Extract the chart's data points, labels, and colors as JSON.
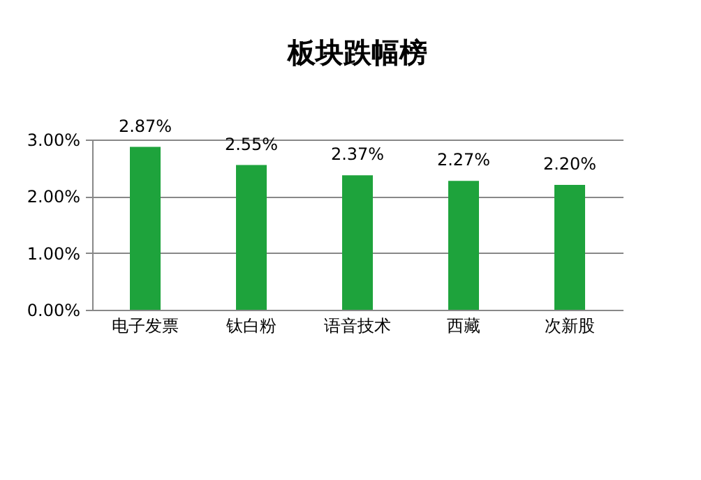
{
  "chart_data": {
    "type": "bar",
    "title": "板块跌幅榜",
    "categories": [
      "电子发票",
      "钛白粉",
      "语音技术",
      "西藏",
      "次新股"
    ],
    "values": [
      2.87,
      2.55,
      2.37,
      2.27,
      2.2
    ],
    "value_labels": [
      "2.87%",
      "2.55%",
      "2.37%",
      "2.27%",
      "2.20%"
    ],
    "color": "#1ea33c",
    "ylim": [
      0,
      3
    ],
    "yticks": [
      {
        "value": 0,
        "label": "0.00%"
      },
      {
        "value": 1,
        "label": "1.00%"
      },
      {
        "value": 2,
        "label": "2.00%"
      },
      {
        "value": 3,
        "label": "3.00%"
      }
    ],
    "grid": "y"
  }
}
